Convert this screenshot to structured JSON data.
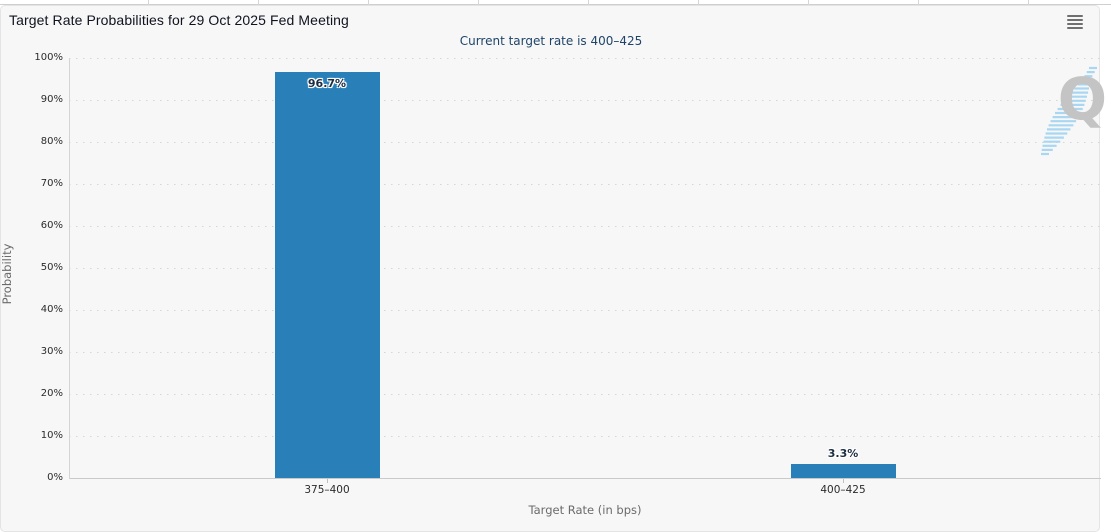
{
  "top_strip": {
    "separator_positions": [
      148,
      258,
      368,
      478,
      588,
      698,
      808,
      918,
      1028
    ]
  },
  "menu": {
    "icon": "hamburger-menu-icon",
    "bars": 4
  },
  "chart_data": {
    "type": "bar",
    "title": "Target Rate Probabilities for 29 Oct 2025 Fed Meeting",
    "subtitle": "Current target rate is 400–425",
    "categories": [
      "375–400",
      "400–425"
    ],
    "values": [
      96.7,
      3.3
    ],
    "data_labels": [
      "96.7%",
      "3.3%"
    ],
    "xlabel": "Target Rate (in bps)",
    "ylabel": "Probability",
    "ylim": [
      0,
      100
    ],
    "ytick_interval": 10,
    "ytick_labels": [
      "0%",
      "10%",
      "20%",
      "30%",
      "40%",
      "50%",
      "60%",
      "70%",
      "80%",
      "90%",
      "100%"
    ],
    "grid": "dotted-horizontal",
    "legend_position": "none",
    "bar_color": "#2980b9",
    "label_color": "#1c2e44",
    "subtitle_color": "#1f4468"
  },
  "watermark": {
    "letter": "Q",
    "letter_color": "#c4c4c4",
    "swoosh_color": "#a9d7f2"
  }
}
